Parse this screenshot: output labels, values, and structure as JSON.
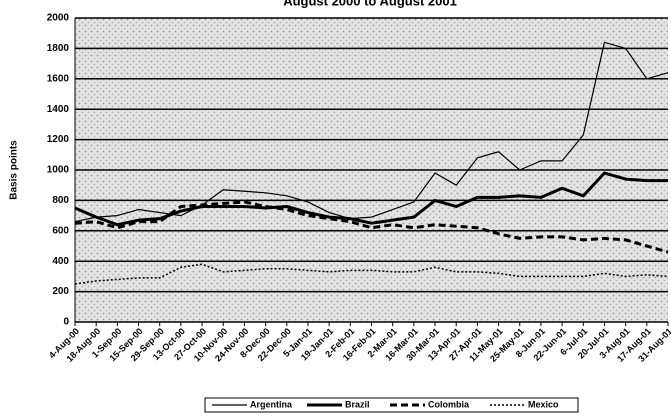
{
  "chart_data": {
    "type": "line",
    "title": "August 2000 to August 2001",
    "y_label": "Basis points",
    "categories": [
      "4-Aug-00",
      "18-Aug-00",
      "1-Sep-00",
      "15-Sep-00",
      "29-Sep-00",
      "13-Oct-00",
      "27-Oct-00",
      "10-Nov-00",
      "24-Nov-00",
      "8-Dec-00",
      "22-Dec-00",
      "5-Jan-01",
      "19-Jan-01",
      "2-Feb-01",
      "16-Feb-01",
      "2-Mar-01",
      "16-Mar-01",
      "30-Mar-01",
      "13-Apr-01",
      "27-Apr-01",
      "11-May-01",
      "25-May-01",
      "8-Jun-01",
      "22-Jun-01",
      "6-Jul-01",
      "20-Jul-01",
      "3-Aug-01",
      "17-Aug-01",
      "31-Aug-01"
    ],
    "series": [
      {
        "name": "Argentina",
        "color": "#000000",
        "style": "solid",
        "width": 1.2,
        "values": [
          660,
          690,
          700,
          740,
          720,
          700,
          770,
          870,
          860,
          850,
          830,
          790,
          720,
          680,
          690,
          740,
          790,
          980,
          900,
          1080,
          1120,
          1000,
          1060,
          1060,
          1230,
          1840,
          1800,
          1600,
          1640
        ]
      },
      {
        "name": "Brazil",
        "color": "#000000",
        "style": "solid",
        "width": 3,
        "values": [
          750,
          690,
          640,
          670,
          680,
          730,
          760,
          760,
          760,
          750,
          760,
          720,
          690,
          680,
          650,
          670,
          690,
          800,
          760,
          820,
          820,
          830,
          820,
          880,
          830,
          980,
          940,
          930,
          930
        ]
      },
      {
        "name": "Colombia",
        "color": "#000000",
        "style": "dashed",
        "width": 3,
        "values": [
          650,
          660,
          620,
          660,
          660,
          760,
          770,
          780,
          790,
          760,
          740,
          700,
          680,
          660,
          620,
          640,
          620,
          640,
          630,
          620,
          580,
          550,
          560,
          560,
          540,
          550,
          540,
          500,
          460
        ]
      },
      {
        "name": "Mexico",
        "color": "#000000",
        "style": "dotted",
        "width": 1.5,
        "values": [
          250,
          270,
          280,
          290,
          290,
          360,
          380,
          330,
          340,
          350,
          350,
          340,
          330,
          340,
          340,
          330,
          330,
          360,
          330,
          330,
          320,
          300,
          300,
          300,
          300,
          320,
          300,
          310,
          300
        ]
      }
    ],
    "ylim": [
      0,
      2000
    ],
    "yticks": [
      0,
      200,
      400,
      600,
      800,
      1000,
      1200,
      1400,
      1600,
      1800,
      2000
    ],
    "grid": true
  }
}
